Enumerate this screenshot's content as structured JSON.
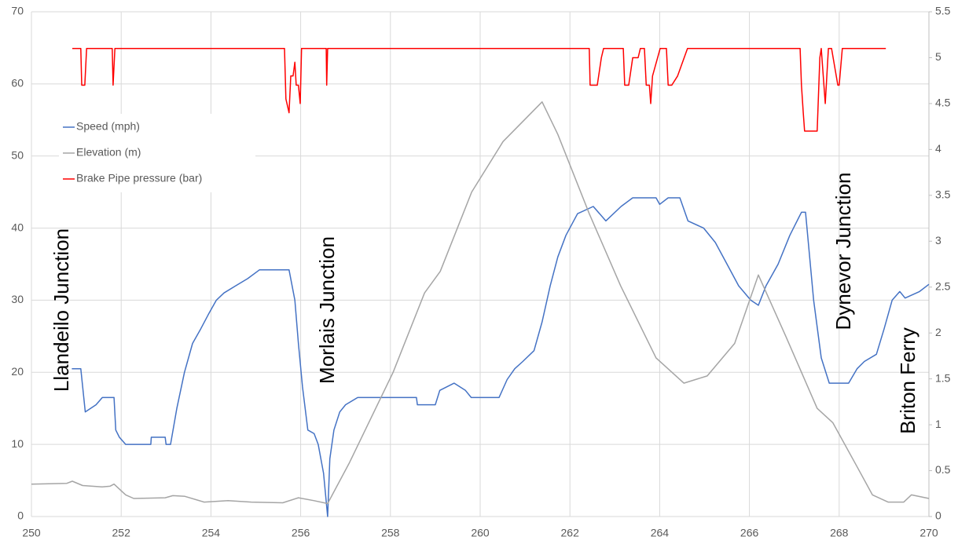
{
  "chart_data": {
    "type": "line",
    "annotations": [
      "Llandeilo Junction",
      "Morlais Junction",
      "Dynevor Junction",
      "Briton Ferry"
    ],
    "xlim": [
      250,
      270
    ],
    "xticks": [
      250,
      252,
      254,
      256,
      258,
      260,
      262,
      264,
      266,
      268,
      270
    ],
    "ylim": [
      0,
      70
    ],
    "yticks": [
      0,
      10,
      20,
      30,
      40,
      50,
      60,
      70
    ],
    "y2lim": [
      0,
      5.5
    ],
    "y2ticks": [
      0,
      0.5,
      1,
      1.5,
      2,
      2.5,
      3,
      3.5,
      4,
      4.5,
      5,
      5.5
    ],
    "grid": true,
    "legend": "upper left",
    "series": [
      {
        "name": "Speed (mph)",
        "color": "#4472c4",
        "x": [
          250.9,
          251.1,
          251.2,
          251.44,
          251.58,
          251.84,
          251.88,
          251.96,
          252.1,
          252.66,
          252.67,
          252.98,
          253.0,
          253.1,
          253.24,
          253.41,
          253.59,
          253.77,
          253.94,
          254.12,
          254.29,
          254.55,
          254.82,
          255.08,
          255.74,
          255.87,
          255.95,
          256.04,
          256.16,
          256.3,
          256.39,
          256.51,
          256.6,
          256.65,
          256.74,
          256.87,
          257.0,
          257.27,
          258.58,
          258.6,
          259.0,
          259.1,
          259.42,
          259.67,
          259.8,
          260.42,
          260.6,
          260.77,
          260.95,
          261.2,
          261.38,
          261.56,
          261.73,
          261.91,
          262.17,
          262.52,
          262.8,
          263.14,
          263.4,
          263.92,
          264.0,
          264.19,
          264.45,
          264.63,
          264.98,
          265.24,
          265.5,
          265.76,
          266.03,
          266.2,
          266.37,
          266.64,
          266.9,
          267.16,
          267.25,
          267.43,
          267.6,
          267.78,
          268.21,
          268.4,
          268.56,
          268.83,
          269.0,
          269.18,
          269.35,
          269.47,
          269.79,
          270
        ],
        "values": [
          20.5,
          20.5,
          14.5,
          15.5,
          16.5,
          16.5,
          12,
          11,
          10,
          10,
          11,
          11,
          10,
          10,
          15,
          20,
          24,
          26,
          28,
          30,
          31,
          32,
          33,
          34.2,
          34.2,
          30,
          24,
          18,
          12,
          11.5,
          10,
          6,
          0,
          8,
          12,
          14.5,
          15.5,
          16.5,
          16.5,
          15.5,
          15.5,
          17.5,
          18.5,
          17.5,
          16.5,
          16.5,
          19,
          20.5,
          21.5,
          23,
          27,
          32,
          36,
          39,
          42,
          43,
          41,
          43,
          44.2,
          44.2,
          43.3,
          44.2,
          44.2,
          41,
          40,
          38,
          35,
          32,
          30,
          29.3,
          32,
          35,
          39,
          42.2,
          42.2,
          30,
          22,
          18.5,
          18.5,
          20.5,
          21.5,
          22.5,
          26,
          30,
          31.2,
          30.3,
          31.2,
          32.2
        ]
      },
      {
        "name": "Elevation (m)",
        "color": "#a5a5a5",
        "x": [
          250,
          250.79,
          250.91,
          251.14,
          251.58,
          251.75,
          251.84,
          252.1,
          252.28,
          252.98,
          253.15,
          253.42,
          253.85,
          254.38,
          254.9,
          255.6,
          255.95,
          256.3,
          256.6,
          257.09,
          258.06,
          258.76,
          259.11,
          259.81,
          260.51,
          261.38,
          261.73,
          262.43,
          263.13,
          263.92,
          264.54,
          265.06,
          265.67,
          266.2,
          266.81,
          267.51,
          267.86,
          268.39,
          268.74,
          269.09,
          269.44,
          269.61,
          270
        ],
        "values": [
          4.5,
          4.6,
          4.9,
          4.3,
          4.1,
          4.2,
          4.5,
          3.0,
          2.5,
          2.6,
          2.9,
          2.8,
          2.0,
          2.2,
          2.0,
          1.9,
          2.6,
          2.2,
          1.8,
          7.5,
          20,
          31,
          34,
          45,
          52,
          57.5,
          53,
          42,
          32,
          22,
          18.5,
          19.5,
          24,
          33.5,
          25,
          15,
          13,
          7,
          3,
          2,
          2,
          3,
          2.5
        ]
      },
      {
        "name": "Brake Pipe pressure (bar)",
        "color": "#ff0000",
        "axis": "y2",
        "x": [
          250.91,
          251.1,
          251.12,
          251.19,
          251.23,
          251.8,
          251.82,
          251.86,
          255.64,
          255.67,
          255.74,
          255.78,
          255.83,
          255.87,
          255.9,
          255.95,
          255.99,
          256.02,
          256.57,
          256.58,
          256.6,
          262.43,
          262.45,
          262.61,
          262.7,
          262.75,
          263.19,
          263.22,
          263.31,
          263.4,
          263.52,
          263.57,
          263.66,
          263.7,
          263.77,
          263.8,
          263.84,
          264.01,
          264.15,
          264.19,
          264.27,
          264.4,
          264.62,
          267.13,
          267.16,
          267.2,
          267.23,
          267.51,
          267.57,
          267.6,
          267.69,
          267.76,
          267.83,
          267.97,
          268.0,
          268.07,
          269.04
        ],
        "values": [
          5.1,
          5.1,
          4.7,
          4.7,
          5.1,
          5.1,
          4.7,
          5.1,
          5.1,
          4.55,
          4.4,
          4.8,
          4.8,
          4.95,
          4.7,
          4.7,
          4.5,
          5.1,
          5.1,
          4.7,
          5.1,
          5.1,
          4.7,
          4.7,
          5.0,
          5.1,
          5.1,
          4.7,
          4.7,
          5.0,
          5.0,
          5.1,
          5.1,
          4.7,
          4.7,
          4.5,
          4.8,
          5.1,
          5.1,
          4.7,
          4.7,
          4.8,
          5.1,
          5.1,
          4.7,
          4.4,
          4.2,
          4.2,
          5.0,
          5.1,
          4.5,
          5.1,
          5.1,
          4.7,
          4.7,
          5.1,
          5.1
        ]
      }
    ]
  }
}
